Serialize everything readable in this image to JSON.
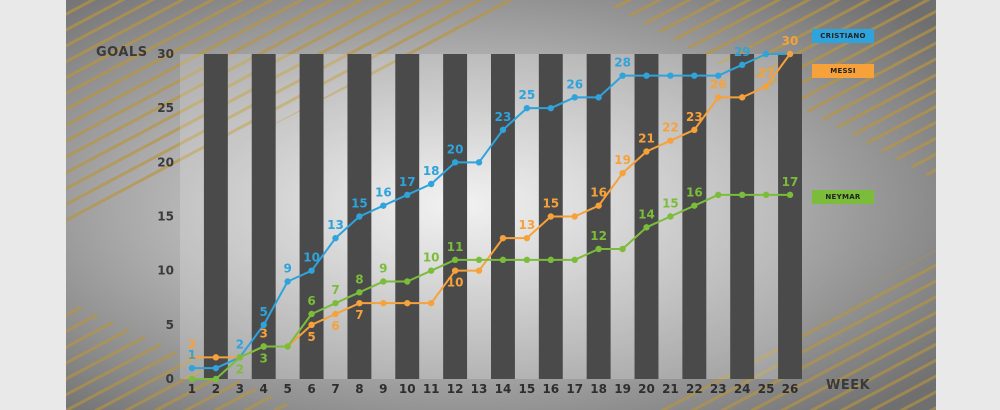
{
  "chart_data": {
    "type": "line",
    "ylabel": "GOALS",
    "xlabel": "WEEK",
    "categories": [
      1,
      2,
      3,
      4,
      5,
      6,
      7,
      8,
      9,
      10,
      11,
      12,
      13,
      14,
      15,
      16,
      17,
      18,
      19,
      20,
      21,
      22,
      23,
      24,
      25,
      26
    ],
    "ylim": [
      0,
      30
    ],
    "yticks": [
      0,
      5,
      10,
      15,
      20,
      25,
      30
    ],
    "grid": "alternating vertical bands",
    "legend_position": "right",
    "series": [
      {
        "name": "CRISTIANO",
        "color": "#2ea3dc",
        "values": [
          1,
          1,
          2,
          5,
          9,
          10,
          13,
          15,
          16,
          17,
          18,
          20,
          20,
          23,
          25,
          25,
          26,
          26,
          28,
          28,
          28,
          28,
          28,
          29,
          30,
          30
        ],
        "labels": [
          1,
          null,
          2,
          5,
          9,
          10,
          13,
          15,
          16,
          17,
          18,
          20,
          null,
          23,
          25,
          null,
          26,
          null,
          28,
          null,
          null,
          null,
          null,
          29,
          null,
          30
        ]
      },
      {
        "name": "MESSI",
        "color": "#f7a13a",
        "values": [
          2,
          2,
          2,
          3,
          3,
          5,
          6,
          7,
          7,
          7,
          7,
          10,
          10,
          13,
          13,
          15,
          15,
          16,
          19,
          21,
          22,
          23,
          26,
          26,
          27,
          30
        ],
        "labels": [
          2,
          null,
          null,
          3,
          null,
          5,
          6,
          7,
          null,
          null,
          null,
          10,
          null,
          null,
          13,
          15,
          null,
          16,
          19,
          21,
          22,
          23,
          26,
          null,
          27,
          30
        ]
      },
      {
        "name": "NEYMAR",
        "color": "#7bbd3a",
        "values": [
          0,
          0,
          2,
          3,
          3,
          6,
          7,
          8,
          9,
          9,
          10,
          11,
          11,
          11,
          11,
          11,
          11,
          12,
          12,
          14,
          15,
          16,
          17,
          17,
          17,
          17
        ],
        "labels": [
          null,
          null,
          2,
          3,
          null,
          6,
          7,
          8,
          9,
          null,
          10,
          11,
          null,
          null,
          null,
          null,
          null,
          12,
          null,
          14,
          15,
          16,
          null,
          null,
          null,
          17
        ]
      }
    ]
  }
}
